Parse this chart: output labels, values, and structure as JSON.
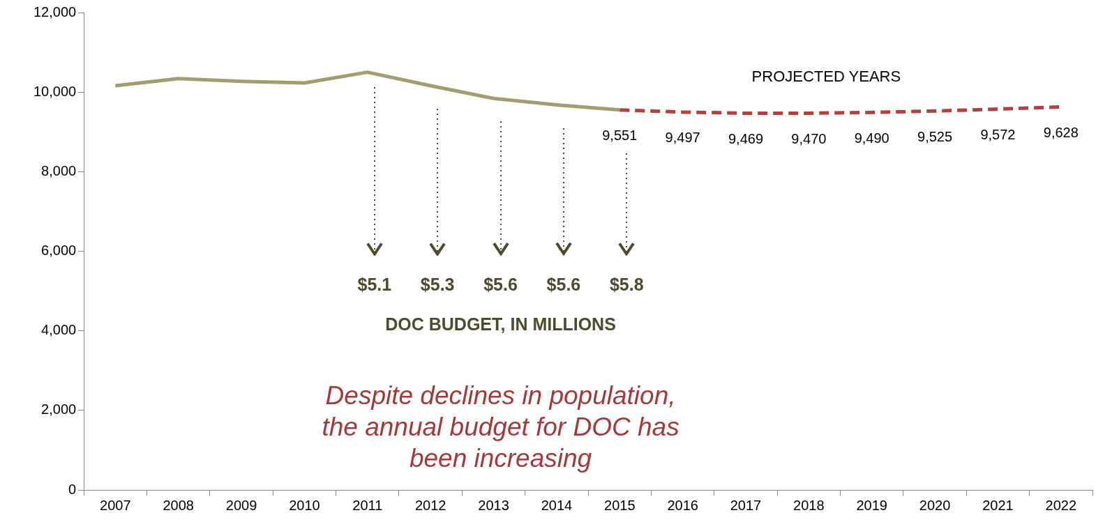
{
  "chart_data": {
    "type": "line",
    "categories": [
      "2007",
      "2008",
      "2009",
      "2010",
      "2011",
      "2012",
      "2013",
      "2014",
      "2015",
      "2016",
      "2017",
      "2018",
      "2019",
      "2020",
      "2021",
      "2022"
    ],
    "series": [
      {
        "color": "#a39c6e",
        "line_style": "solid",
        "values": [
          10160,
          10340,
          10270,
          10230,
          10500,
          10160,
          9840,
          9680,
          9551,
          null,
          null,
          null,
          null,
          null,
          null,
          null
        ]
      },
      {
        "color": "#b0413e",
        "line_style": "dashed",
        "values": [
          null,
          null,
          null,
          null,
          null,
          null,
          null,
          null,
          9551,
          9497,
          9469,
          9470,
          9490,
          9525,
          9572,
          9628
        ],
        "value_labels": [
          null,
          null,
          null,
          null,
          null,
          null,
          null,
          null,
          "9,551",
          "9,497",
          "9,469",
          "9,470",
          "9,490",
          "9,525",
          "9,572",
          "9,628"
        ]
      }
    ],
    "ylim": [
      0,
      12000
    ],
    "yticks": [
      0,
      {
        "value": 2000,
        "label": "2,000"
      },
      {
        "value": 4000,
        "label": "4,000"
      },
      {
        "value": 6000,
        "label": "6,000"
      },
      {
        "value": 8000,
        "label": "8,000"
      },
      {
        "value": 10000,
        "label": "10,000"
      },
      {
        "value": 12000,
        "label": "12,000"
      }
    ],
    "grid": false,
    "legend": false,
    "marker": "none",
    "annotations": [
      "PROJECTED YEARS",
      "$5.1",
      "$5.3",
      "$5.6",
      "$5.6",
      "$5.8",
      "DOC BUDGET, IN MILLIONS",
      "Despite declines in population, the annual budget for DOC has been increasing"
    ]
  }
}
